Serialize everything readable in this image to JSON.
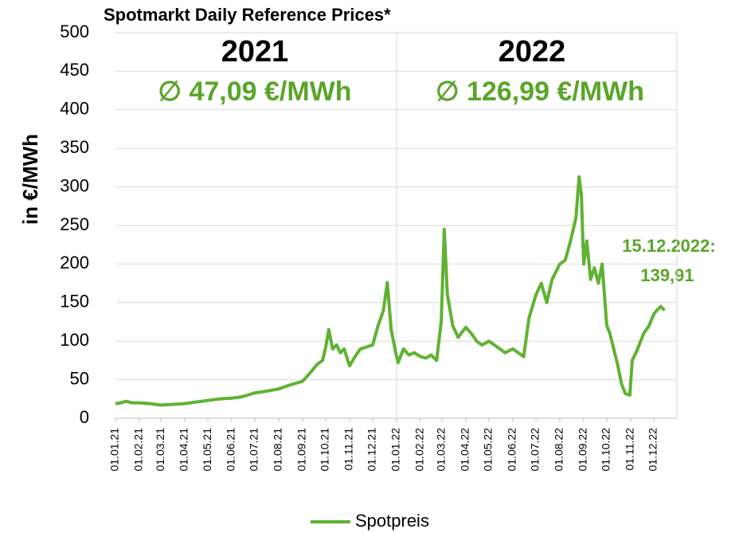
{
  "chart_data": {
    "type": "line",
    "title": "Spotmarkt Daily Reference Prices*",
    "y_label": "in €/MWh",
    "annotations": [
      "2021",
      "∅ 47,09 €/MWh",
      "2022",
      "∅ 126,99 €/MWh",
      "15.12.2022:",
      "139,91"
    ],
    "xlim": [
      "01.01.21",
      "31.12.22"
    ],
    "xticks": [
      "01.01.21",
      "01.02.21",
      "01.03.21",
      "01.04.21",
      "01.05.21",
      "01.06.21",
      "01.07.21",
      "01.08.21",
      "01.09.21",
      "01.10.21",
      "01.11.21",
      "01.12.21",
      "01.01.22",
      "01.02.22",
      "01.03.22",
      "01.04.22",
      "01.05.22",
      "01.06.22",
      "01.07.22",
      "01.08.22",
      "01.09.22",
      "01.10.22",
      "01.11.22",
      "01.12.22"
    ],
    "ylim": [
      0,
      500
    ],
    "yticks": [
      0,
      50,
      100,
      150,
      200,
      250,
      300,
      350,
      400,
      450,
      500
    ],
    "grid": true,
    "legend": "bottom",
    "series": [
      {
        "name": "Spotpreis",
        "color": "#5fb233",
        "x": [
          "01.01.21",
          "08.01.21",
          "15.01.21",
          "22.01.21",
          "01.02.21",
          "15.02.21",
          "01.03.21",
          "15.03.21",
          "01.04.21",
          "15.04.21",
          "01.05.21",
          "15.05.21",
          "01.06.21",
          "15.06.21",
          "01.07.21",
          "15.07.21",
          "01.08.21",
          "15.08.21",
          "01.09.21",
          "10.09.21",
          "20.09.21",
          "27.09.21",
          "01.10.21",
          "05.10.21",
          "10.10.21",
          "15.10.21",
          "20.10.21",
          "25.10.21",
          "01.11.21",
          "08.11.21",
          "15.11.21",
          "22.11.21",
          "01.12.21",
          "08.12.21",
          "15.12.21",
          "20.12.21",
          "25.12.21",
          "31.12.21",
          "03.01.22",
          "10.01.22",
          "17.01.22",
          "24.01.22",
          "01.02.22",
          "08.02.22",
          "15.02.22",
          "22.02.22",
          "28.02.22",
          "04.03.22",
          "08.03.22",
          "15.03.22",
          "22.03.22",
          "01.04.22",
          "08.04.22",
          "15.04.22",
          "22.04.22",
          "01.05.22",
          "08.05.22",
          "15.05.22",
          "22.05.22",
          "01.06.22",
          "08.06.22",
          "15.06.22",
          "22.06.22",
          "01.07.22",
          "08.07.22",
          "15.07.22",
          "22.07.22",
          "01.08.22",
          "08.08.22",
          "15.08.22",
          "22.08.22",
          "26.08.22",
          "29.08.22",
          "01.09.22",
          "05.09.22",
          "10.09.22",
          "15.09.22",
          "20.09.22",
          "25.09.22",
          "01.10.22",
          "05.10.22",
          "10.10.22",
          "15.10.22",
          "20.10.22",
          "25.10.22",
          "31.10.22",
          "03.11.22",
          "08.11.22",
          "12.11.22",
          "18.11.22",
          "25.11.22",
          "01.12.22",
          "05.12.22",
          "10.12.22",
          "15.12.22"
        ],
        "values": [
          19,
          20,
          22,
          20,
          20,
          19,
          17,
          18,
          19,
          21,
          23,
          25,
          26,
          28,
          33,
          35,
          38,
          43,
          48,
          58,
          70,
          75,
          92,
          115,
          90,
          95,
          85,
          90,
          68,
          80,
          90,
          92,
          95,
          120,
          140,
          176,
          115,
          85,
          72,
          90,
          82,
          85,
          80,
          78,
          82,
          75,
          125,
          245,
          160,
          120,
          105,
          118,
          110,
          100,
          95,
          100,
          95,
          90,
          85,
          90,
          85,
          80,
          130,
          160,
          175,
          150,
          180,
          200,
          205,
          230,
          260,
          313,
          290,
          200,
          230,
          180,
          195,
          175,
          200,
          120,
          110,
          90,
          70,
          45,
          32,
          30,
          75,
          85,
          95,
          110,
          120,
          135,
          140,
          145,
          139.91
        ]
      }
    ]
  }
}
